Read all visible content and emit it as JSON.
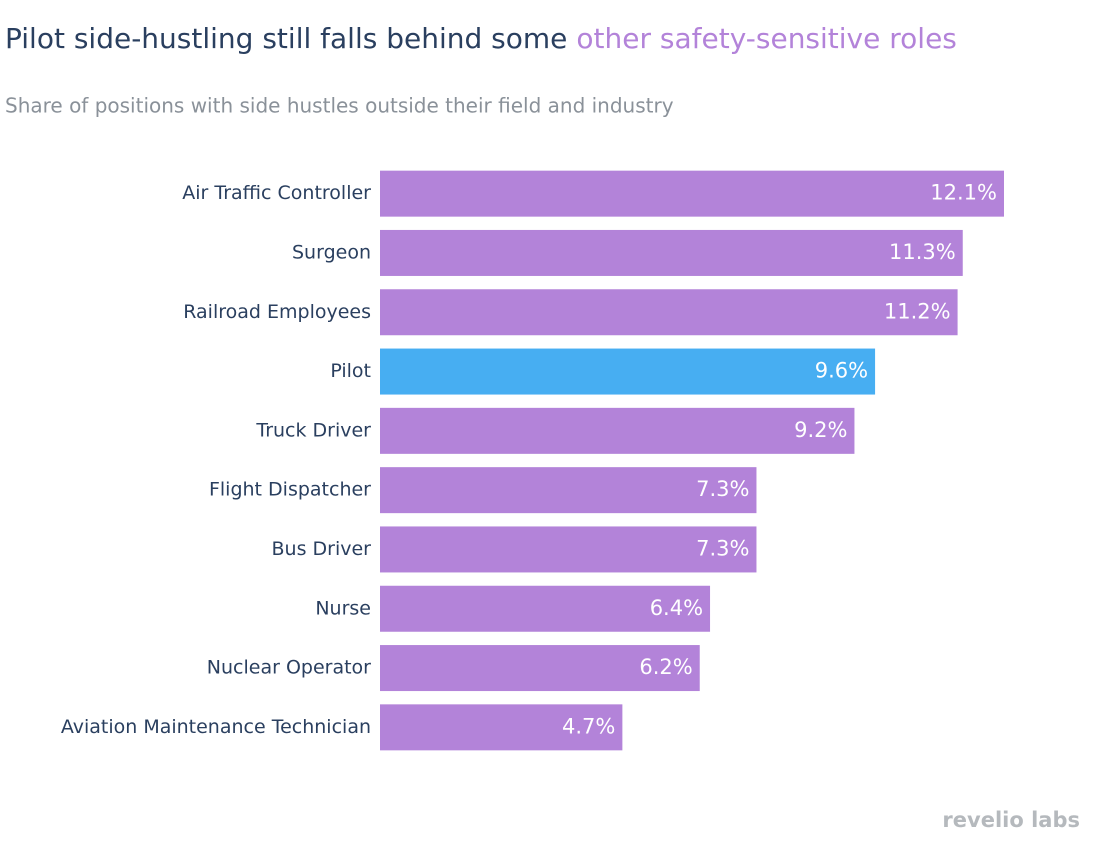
{
  "chart_data": {
    "type": "hbar",
    "title": [
      "Pilot side-hustling still falls behind some",
      "other safety-sensitive roles"
    ],
    "title_colors": [
      "#2a3f5f",
      "#b383d9"
    ],
    "subtitle": "Share of positions with side hustles outside their field and industry",
    "categories": [
      "Air Traffic Controller",
      "Surgeon",
      "Railroad Employees",
      "Pilot",
      "Truck Driver",
      "Flight Dispatcher",
      "Bus Driver",
      "Nurse",
      "Nuclear Operator",
      "Aviation Maintenance Technician"
    ],
    "values": [
      12.1,
      11.3,
      11.2,
      9.6,
      9.2,
      7.3,
      7.3,
      6.4,
      6.2,
      4.7
    ],
    "value_labels": [
      "12.1%",
      "11.3%",
      "11.2%",
      "9.6%",
      "9.2%",
      "7.3%",
      "7.3%",
      "6.4%",
      "6.2%",
      "4.7%"
    ],
    "colors": [
      "#b383d9",
      "#b383d9",
      "#b383d9",
      "#47aef2",
      "#b383d9",
      "#b383d9",
      "#b383d9",
      "#b383d9",
      "#b383d9",
      "#b383d9"
    ],
    "logo": "revelio labs"
  }
}
